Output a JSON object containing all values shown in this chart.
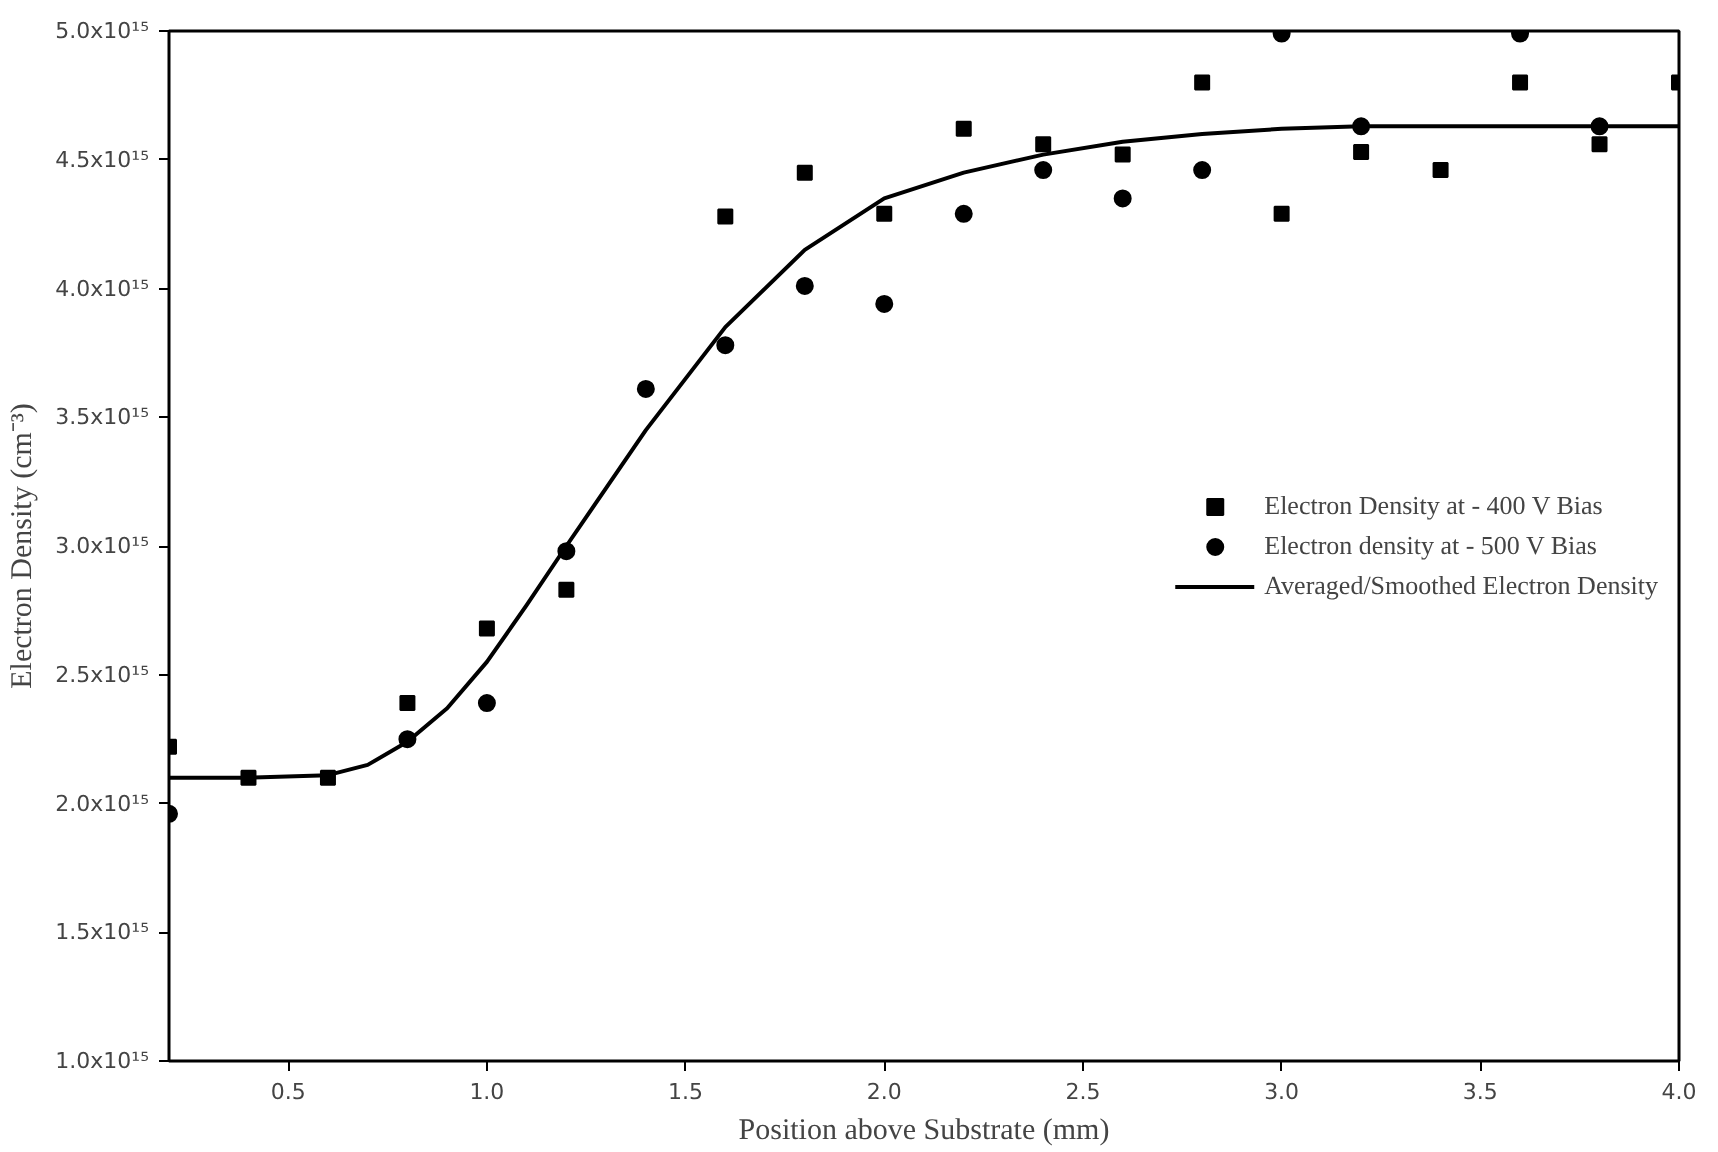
{
  "chart_data": {
    "type": "scatter",
    "xlabel": "Position above Substrate (mm)",
    "ylabel": "Electron Density (cm⁻³)",
    "xlim": [
      0.2,
      4.0
    ],
    "ylim": [
      1000000000000000.0,
      5000000000000000.0
    ],
    "xticks": [
      {
        "value": 0.5,
        "label": "0.5"
      },
      {
        "value": 1.0,
        "label": "1.0"
      },
      {
        "value": 1.5,
        "label": "1.5"
      },
      {
        "value": 2.0,
        "label": "2.0"
      },
      {
        "value": 2.5,
        "label": "2.5"
      },
      {
        "value": 3.0,
        "label": "3.0"
      },
      {
        "value": 3.5,
        "label": "3.5"
      },
      {
        "value": 4.0,
        "label": "4.0"
      }
    ],
    "yticks": [
      {
        "value": 1000000000000000.0,
        "label": "1.0x10¹⁵"
      },
      {
        "value": 1500000000000000.0,
        "label": "1.5x10¹⁵"
      },
      {
        "value": 2000000000000000.0,
        "label": "2.0x10¹⁵"
      },
      {
        "value": 2500000000000000.0,
        "label": "2.5x10¹⁵"
      },
      {
        "value": 3000000000000000.0,
        "label": "3.0x10¹⁵"
      },
      {
        "value": 3500000000000000.0,
        "label": "3.5x10¹⁵"
      },
      {
        "value": 4000000000000000.0,
        "label": "4.0x10¹⁵"
      },
      {
        "value": 4500000000000000.0,
        "label": "4.5x10¹⁵"
      },
      {
        "value": 5000000000000000.0,
        "label": "5.0x10¹⁵"
      }
    ],
    "grid": false,
    "legend": "right",
    "series": [
      {
        "name": "Electron Density at - 400 V Bias",
        "color": "#000000",
        "marker": "square",
        "x": [
          0.2,
          0.4,
          0.6,
          0.8,
          1.0,
          1.2,
          1.6,
          1.8,
          2.0,
          2.2,
          2.4,
          2.6,
          2.8,
          3.0,
          3.2,
          3.4,
          3.6,
          3.8,
          4.0
        ],
        "values": [
          2220000000000000.0,
          2100000000000000.0,
          2100000000000000.0,
          2390000000000000.0,
          2680000000000000.0,
          2830000000000000.0,
          4280000000000000.0,
          4450000000000000.0,
          4290000000000000.0,
          4620000000000000.0,
          4560000000000000.0,
          4520000000000000.0,
          4800000000000000.0,
          4290000000000000.0,
          4530000000000000.0,
          4460000000000000.0,
          4800000000000000.0,
          4560000000000000.0,
          4800000000000000.0
        ]
      },
      {
        "name": "Electron density at - 500 V Bias",
        "color": "#000000",
        "marker": "circle",
        "x": [
          0.2,
          0.8,
          1.0,
          1.2,
          1.4,
          1.6,
          1.8,
          2.0,
          2.2,
          2.4,
          2.6,
          2.8,
          3.0,
          3.2,
          3.6,
          3.8
        ],
        "values": [
          1960000000000000.0,
          2250000000000000.0,
          2390000000000000.0,
          2980000000000000.0,
          3610000000000000.0,
          3780000000000000.0,
          4010000000000000.0,
          3940000000000000.0,
          4290000000000000.0,
          4460000000000000.0,
          4350000000000000.0,
          4460000000000000.0,
          4990000000000000.0,
          4630000000000000.0,
          4990000000000000.0,
          4630000000000000.0
        ]
      },
      {
        "name": "Averaged/Smoothed Electron Density",
        "type": "line",
        "color": "#000000",
        "marker": "none",
        "line_style": "solid",
        "x": [
          0.2,
          0.4,
          0.6,
          0.7,
          0.8,
          0.9,
          1.0,
          1.1,
          1.2,
          1.4,
          1.6,
          1.8,
          2.0,
          2.2,
          2.4,
          2.6,
          2.8,
          3.0,
          3.2,
          3.6,
          4.0
        ],
        "values": [
          2100000000000000.0,
          2100000000000000.0,
          2110000000000000.0,
          2150000000000000.0,
          2240000000000000.0,
          2370000000000000.0,
          2550000000000000.0,
          2770000000000000.0,
          3000000000000000.0,
          3450000000000000.0,
          3850000000000000.0,
          4150000000000000.0,
          4350000000000000.0,
          4450000000000000.0,
          4520000000000000.0,
          4570000000000000.0,
          4600000000000000.0,
          4620000000000000.0,
          4630000000000000.0,
          4630000000000000.0,
          4630000000000000.0
        ]
      }
    ]
  }
}
